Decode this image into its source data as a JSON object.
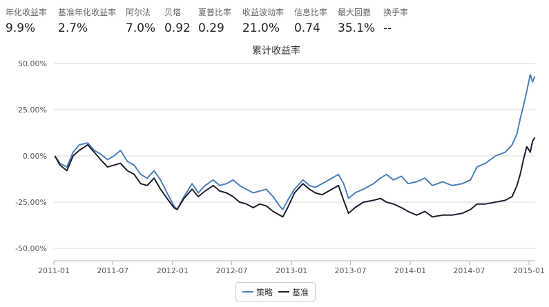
{
  "metrics": [
    {
      "label": "年化收益率",
      "value": "9.9%"
    },
    {
      "label": "基准年化收益率",
      "value": "2.7%"
    },
    {
      "label": "阿尔法",
      "value": "7.0%"
    },
    {
      "label": "贝塔",
      "value": "0.92"
    },
    {
      "label": "夏普比率",
      "value": "0.29"
    },
    {
      "label": "收益波动率",
      "value": "21.0%"
    },
    {
      "label": "信息比率",
      "value": "0.74"
    },
    {
      "label": "最大回撤",
      "value": "35.1%"
    },
    {
      "label": "换手率",
      "value": "--"
    }
  ],
  "chart_data": {
    "type": "line",
    "title": "累计收益率",
    "xlabel": "",
    "ylabel": "",
    "ylim": [
      -55,
      55
    ],
    "xlim": [
      "2011-01-01",
      "2015-01-20"
    ],
    "grid": true,
    "legend_position": "bottom-center",
    "y_ticks": [
      {
        "value": 50,
        "label": "50.00%"
      },
      {
        "value": 25,
        "label": "25.00%"
      },
      {
        "value": 0,
        "label": "0.00%"
      },
      {
        "value": -25,
        "label": "-25.00%"
      },
      {
        "value": -50,
        "label": "-50.00%"
      }
    ],
    "x_ticks": [
      {
        "date": "2011-01-01",
        "label": "2011-01"
      },
      {
        "date": "2011-07-01",
        "label": "2011-07"
      },
      {
        "date": "2012-01-01",
        "label": "2012-01"
      },
      {
        "date": "2012-07-01",
        "label": "2012-07"
      },
      {
        "date": "2013-01-01",
        "label": "2013-01"
      },
      {
        "date": "2013-07-01",
        "label": "2013-07"
      },
      {
        "date": "2014-01-01",
        "label": "2014-01"
      },
      {
        "date": "2014-07-01",
        "label": "2014-07"
      },
      {
        "date": "2015-01-01",
        "label": "2015-01"
      }
    ],
    "series": [
      {
        "name": "策略",
        "color": "#4a7ebb",
        "points": [
          [
            "2011-01-04",
            0
          ],
          [
            "2011-01-20",
            -4
          ],
          [
            "2011-02-10",
            -6
          ],
          [
            "2011-03-01",
            2
          ],
          [
            "2011-03-20",
            6
          ],
          [
            "2011-04-15",
            7
          ],
          [
            "2011-05-05",
            3
          ],
          [
            "2011-05-25",
            1
          ],
          [
            "2011-06-15",
            -2
          ],
          [
            "2011-07-05",
            0
          ],
          [
            "2011-07-25",
            3
          ],
          [
            "2011-08-15",
            -3
          ],
          [
            "2011-09-05",
            -5
          ],
          [
            "2011-09-25",
            -10
          ],
          [
            "2011-10-15",
            -12
          ],
          [
            "2011-11-05",
            -8
          ],
          [
            "2011-11-25",
            -13
          ],
          [
            "2011-12-15",
            -20
          ],
          [
            "2012-01-05",
            -27
          ],
          [
            "2012-01-15",
            -29
          ],
          [
            "2012-02-05",
            -22
          ],
          [
            "2012-03-01",
            -15
          ],
          [
            "2012-03-20",
            -20
          ],
          [
            "2012-04-10",
            -16
          ],
          [
            "2012-05-05",
            -13
          ],
          [
            "2012-05-25",
            -16
          ],
          [
            "2012-06-15",
            -15
          ],
          [
            "2012-07-05",
            -13
          ],
          [
            "2012-07-25",
            -16
          ],
          [
            "2012-08-15",
            -18
          ],
          [
            "2012-09-05",
            -20
          ],
          [
            "2012-09-25",
            -19
          ],
          [
            "2012-10-15",
            -18
          ],
          [
            "2012-11-05",
            -22
          ],
          [
            "2012-11-25",
            -27
          ],
          [
            "2012-12-05",
            -29
          ],
          [
            "2012-12-20",
            -24
          ],
          [
            "2013-01-10",
            -18
          ],
          [
            "2013-02-05",
            -13
          ],
          [
            "2013-02-25",
            -16
          ],
          [
            "2013-03-15",
            -17
          ],
          [
            "2013-04-05",
            -15
          ],
          [
            "2013-05-05",
            -12
          ],
          [
            "2013-05-25",
            -10
          ],
          [
            "2013-06-10",
            -15
          ],
          [
            "2013-06-25",
            -23
          ],
          [
            "2013-07-15",
            -20
          ],
          [
            "2013-08-10",
            -18
          ],
          [
            "2013-09-10",
            -15
          ],
          [
            "2013-10-01",
            -12
          ],
          [
            "2013-10-20",
            -10
          ],
          [
            "2013-11-10",
            -13
          ],
          [
            "2013-12-05",
            -11
          ],
          [
            "2013-12-25",
            -15
          ],
          [
            "2014-01-20",
            -14
          ],
          [
            "2014-02-15",
            -12
          ],
          [
            "2014-03-10",
            -16
          ],
          [
            "2014-04-10",
            -14
          ],
          [
            "2014-05-10",
            -16
          ],
          [
            "2014-06-10",
            -15
          ],
          [
            "2014-07-05",
            -13
          ],
          [
            "2014-07-25",
            -6
          ],
          [
            "2014-08-20",
            -4
          ],
          [
            "2014-09-20",
            0
          ],
          [
            "2014-10-20",
            2
          ],
          [
            "2014-11-10",
            6
          ],
          [
            "2014-11-25",
            12
          ],
          [
            "2014-12-05",
            20
          ],
          [
            "2014-12-15",
            27
          ],
          [
            "2014-12-25",
            35
          ],
          [
            "2015-01-05",
            44
          ],
          [
            "2015-01-12",
            40
          ],
          [
            "2015-01-19",
            43
          ]
        ]
      },
      {
        "name": "基准",
        "color": "#1a1f2e",
        "points": [
          [
            "2011-01-04",
            0
          ],
          [
            "2011-01-20",
            -5
          ],
          [
            "2011-02-10",
            -8
          ],
          [
            "2011-03-01",
            0
          ],
          [
            "2011-03-20",
            3
          ],
          [
            "2011-04-15",
            6
          ],
          [
            "2011-05-05",
            2
          ],
          [
            "2011-05-25",
            -2
          ],
          [
            "2011-06-15",
            -6
          ],
          [
            "2011-07-05",
            -5
          ],
          [
            "2011-07-25",
            -4
          ],
          [
            "2011-08-15",
            -8
          ],
          [
            "2011-09-05",
            -10
          ],
          [
            "2011-09-25",
            -15
          ],
          [
            "2011-10-15",
            -16
          ],
          [
            "2011-11-05",
            -12
          ],
          [
            "2011-11-25",
            -18
          ],
          [
            "2011-12-15",
            -23
          ],
          [
            "2012-01-05",
            -28
          ],
          [
            "2012-01-15",
            -29
          ],
          [
            "2012-02-05",
            -23
          ],
          [
            "2012-03-01",
            -18
          ],
          [
            "2012-03-20",
            -22
          ],
          [
            "2012-04-10",
            -19
          ],
          [
            "2012-05-05",
            -16
          ],
          [
            "2012-05-25",
            -19
          ],
          [
            "2012-06-15",
            -20
          ],
          [
            "2012-07-05",
            -22
          ],
          [
            "2012-07-25",
            -25
          ],
          [
            "2012-08-15",
            -26
          ],
          [
            "2012-09-05",
            -28
          ],
          [
            "2012-09-25",
            -26
          ],
          [
            "2012-10-15",
            -27
          ],
          [
            "2012-11-05",
            -30
          ],
          [
            "2012-11-25",
            -32
          ],
          [
            "2012-12-05",
            -33
          ],
          [
            "2012-12-20",
            -28
          ],
          [
            "2013-01-10",
            -20
          ],
          [
            "2013-02-05",
            -15
          ],
          [
            "2013-02-25",
            -18
          ],
          [
            "2013-03-15",
            -20
          ],
          [
            "2013-04-05",
            -21
          ],
          [
            "2013-05-05",
            -18
          ],
          [
            "2013-05-25",
            -16
          ],
          [
            "2013-06-10",
            -24
          ],
          [
            "2013-06-25",
            -31
          ],
          [
            "2013-07-15",
            -28
          ],
          [
            "2013-08-10",
            -25
          ],
          [
            "2013-09-10",
            -24
          ],
          [
            "2013-10-01",
            -23
          ],
          [
            "2013-10-20",
            -25
          ],
          [
            "2013-11-10",
            -26
          ],
          [
            "2013-12-05",
            -28
          ],
          [
            "2013-12-25",
            -30
          ],
          [
            "2014-01-20",
            -32
          ],
          [
            "2014-02-15",
            -30
          ],
          [
            "2014-03-10",
            -33
          ],
          [
            "2014-04-10",
            -32
          ],
          [
            "2014-05-10",
            -32
          ],
          [
            "2014-06-10",
            -31
          ],
          [
            "2014-07-05",
            -29
          ],
          [
            "2014-07-25",
            -26
          ],
          [
            "2014-08-20",
            -26
          ],
          [
            "2014-09-20",
            -25
          ],
          [
            "2014-10-20",
            -24
          ],
          [
            "2014-11-10",
            -22
          ],
          [
            "2014-11-25",
            -16
          ],
          [
            "2014-12-05",
            -10
          ],
          [
            "2014-12-15",
            -2
          ],
          [
            "2014-12-25",
            5
          ],
          [
            "2015-01-05",
            2
          ],
          [
            "2015-01-12",
            8
          ],
          [
            "2015-01-19",
            10
          ]
        ]
      }
    ]
  }
}
